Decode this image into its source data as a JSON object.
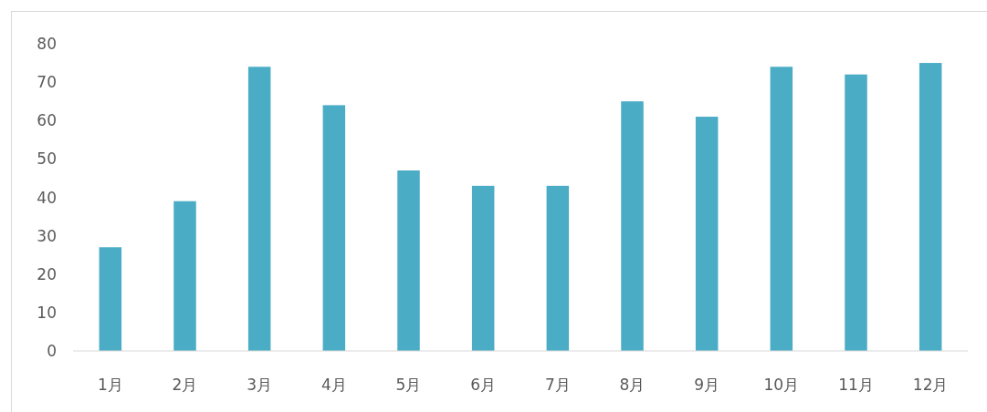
{
  "chart_data": {
    "type": "bar",
    "categories": [
      "1月",
      "2月",
      "3月",
      "4月",
      "5月",
      "6月",
      "7月",
      "8月",
      "9月",
      "10月",
      "11月",
      "12月"
    ],
    "values": [
      27,
      39,
      74,
      64,
      47,
      43,
      43,
      65,
      61,
      74,
      72,
      75
    ],
    "color": "#4bacc6",
    "ylim": [
      0,
      80
    ],
    "yticks": [
      0,
      10,
      20,
      30,
      40,
      50,
      60,
      70,
      80
    ],
    "grid": false
  }
}
